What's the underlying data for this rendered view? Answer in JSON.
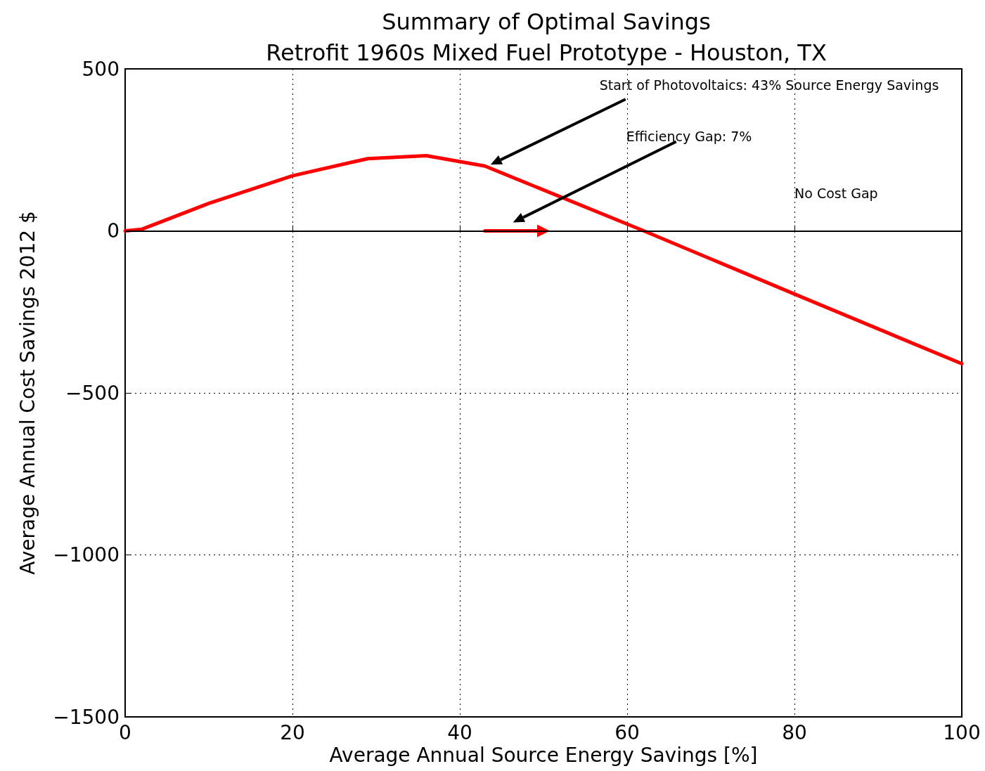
{
  "chart_data": {
    "type": "line",
    "title": "Summary of Optimal Savings",
    "subtitle": "Retrofit 1960s Mixed Fuel Prototype - Houston, TX",
    "xlabel": "Average Annual Source Energy Savings [%]",
    "ylabel": "Average Annual Cost Savings 2012 $",
    "series": [
      {
        "color": "#ff0000",
        "x": [
          0,
          2,
          10,
          20,
          29,
          36,
          43,
          62,
          80,
          100
        ],
        "values": [
          0,
          5,
          85,
          170,
          223,
          232,
          200,
          0,
          -195,
          -410
        ]
      },
      {
        "color": "#ff0000",
        "marker": "triangle",
        "x": [
          43,
          50
        ],
        "values": [
          0,
          0
        ]
      }
    ],
    "annotations": [
      "Start of Photovoltaics: 43% Source Energy Savings",
      "Efficiency Gap: 7%",
      "No Cost Gap"
    ],
    "ref_lines": [
      {
        "axis": "y",
        "value": 0,
        "color": "#000000"
      }
    ],
    "xlim": [
      0,
      100
    ],
    "xticks": [
      0,
      20,
      40,
      60,
      80,
      100
    ],
    "ylim": [
      -1500,
      500
    ],
    "yticks": [
      -1500,
      -1000,
      -500,
      0,
      500
    ],
    "grid": true,
    "marker": "none",
    "line_style": "solid"
  }
}
